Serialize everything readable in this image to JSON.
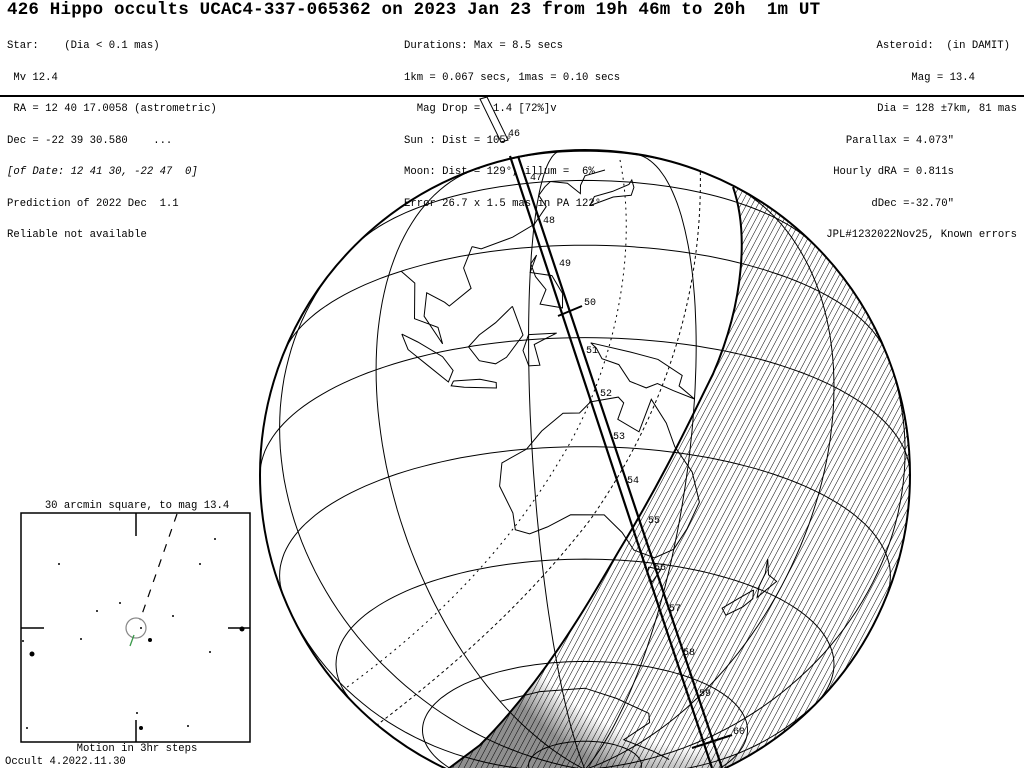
{
  "title": "426 Hippo occults UCAC4-337-065362 on 2023 Jan 23 from 19h 46m to 20h  1m UT",
  "star": {
    "lines": [
      "Star:    (Dia < 0.1 mas)",
      " Mv 12.4",
      " RA = 12 40 17.0058 (astrometric)",
      "Dec = -22 39 30.580    ...",
      "[of Date: 12 41 30, -22 47  0]",
      "Prediction of 2022 Dec  1.1",
      "Reliable not available"
    ]
  },
  "event": {
    "lines": [
      "Durations: Max = 8.5 secs",
      "1km = 0.067 secs, 1mas = 0.10 secs",
      "  Mag Drop =  1.4 [72%]v",
      "Sun : Dist = 105°",
      "Moon: Dist = 129°, illum =  6%",
      "Error 26.7 x 1.5 mas in PA 122°"
    ]
  },
  "asteroid": {
    "lines": [
      "Asteroid:  (in DAMIT)",
      "Mag = 13.4",
      "Dia = 128 ±7km, 81 mas",
      "Parallax = 4.073\"",
      "Hourly dRA = 0.811s",
      "dDec =-32.70\"",
      "JPL#1232022Nov25, Known errors"
    ]
  },
  "map": {
    "path_time_labels": [
      "46",
      "47",
      "48",
      "49",
      "50",
      "51",
      "52",
      "53",
      "54",
      "55",
      "56",
      "57",
      "58",
      "59",
      "60"
    ],
    "center_lat": -25,
    "center_lon": 130,
    "grid_lat_step": 20,
    "grid_lon_step": 30
  },
  "inset": {
    "title": "30 arcmin square, to mag 13.4",
    "footer": "Motion in 3hr steps"
  },
  "version": "Occult 4.2022.11.30",
  "colors": {
    "ink": "#000000",
    "motion_vector": "#3a9a4a",
    "star_circle": "#888888"
  }
}
